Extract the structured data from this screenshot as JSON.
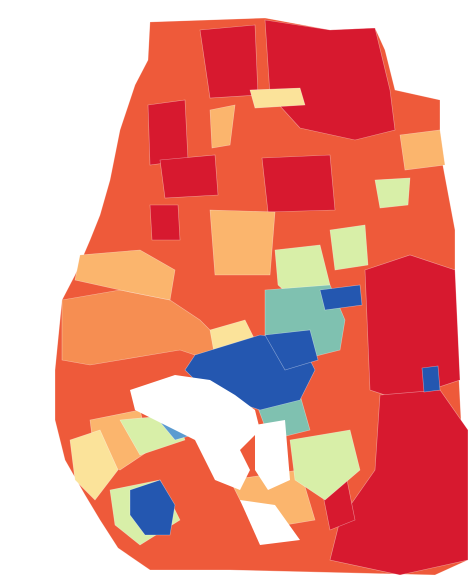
{
  "map": {
    "type": "choropleth",
    "colors": {
      "dark_red": "#d7192f",
      "red_orange": "#ee5a3a",
      "orange": "#f68e52",
      "light_orange": "#fbb56d",
      "pale_yellow": "#fbe39a",
      "light_green": "#d8efa8",
      "teal": "#7fc1b0",
      "light_blue": "#5b9bd0",
      "blue": "#2457b0",
      "water": "#ffffff"
    },
    "regions": [
      {
        "name": "north-west-block",
        "color": "dark_red"
      },
      {
        "name": "north-east-block",
        "color": "dark_red"
      },
      {
        "name": "north-central-block",
        "color": "dark_red"
      },
      {
        "name": "west-inland-block",
        "color": "dark_red"
      },
      {
        "name": "center-block",
        "color": "dark_red"
      },
      {
        "name": "east-block",
        "color": "dark_red"
      },
      {
        "name": "south-east-block",
        "color": "dark_red"
      },
      {
        "name": "east-orange-block",
        "color": "light_orange"
      },
      {
        "name": "central-orange-block",
        "color": "light_orange"
      },
      {
        "name": "central-green-block",
        "color": "light_green"
      },
      {
        "name": "east-green-block",
        "color": "light_green"
      },
      {
        "name": "tampa-blue-core",
        "color": "blue"
      },
      {
        "name": "tampa-blue-east",
        "color": "blue"
      },
      {
        "name": "tampa-teal",
        "color": "teal"
      },
      {
        "name": "peninsula-blue",
        "color": "blue"
      },
      {
        "name": "peninsula-light-blue",
        "color": "light_blue"
      },
      {
        "name": "peninsula-yellow",
        "color": "pale_yellow"
      },
      {
        "name": "coastal-orange",
        "color": "orange"
      },
      {
        "name": "southern-green",
        "color": "light_green"
      }
    ]
  }
}
